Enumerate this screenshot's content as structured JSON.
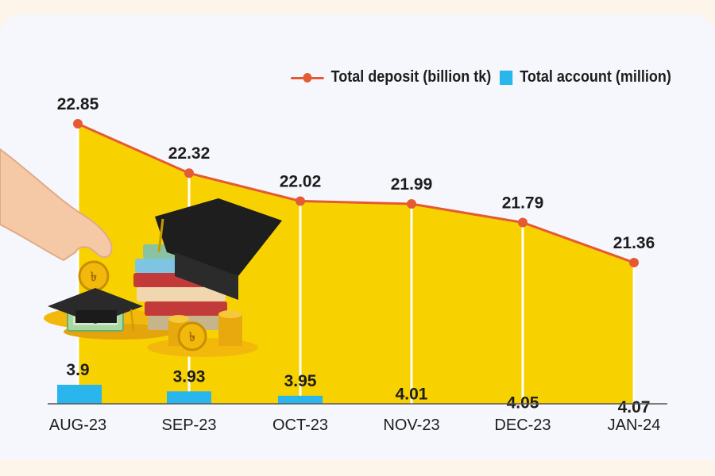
{
  "chart_data": {
    "type": "bar+line",
    "categories": [
      "AUG-23",
      "SEP-23",
      "OCT-23",
      "NOV-23",
      "DEC-23",
      "JAN-24"
    ],
    "series": [
      {
        "name": "Total deposit (billion tk)",
        "type": "line",
        "values": [
          22.85,
          22.32,
          22.02,
          21.99,
          21.79,
          21.36
        ],
        "labels": [
          "22.85",
          "22.32",
          "22.02",
          "21.99",
          "21.79",
          "21.36"
        ]
      },
      {
        "name": "Total account (million)",
        "type": "bar",
        "values": [
          3.9,
          3.93,
          3.95,
          4.01,
          4.05,
          4.07
        ],
        "labels": [
          "3.9",
          "3.93",
          "3.95",
          "4.01",
          "4.05",
          "4.07"
        ]
      }
    ],
    "legend_position": "top-right"
  },
  "colors": {
    "line": "#e45a33",
    "area": "#f7d200",
    "bar": "#29b6ec",
    "background": "#f6f7fc"
  },
  "illustration": {
    "icons": [
      "hand-coin-icon",
      "graduation-cap-icon",
      "books-icon",
      "coins-icon",
      "piggy-bank-icon"
    ]
  }
}
